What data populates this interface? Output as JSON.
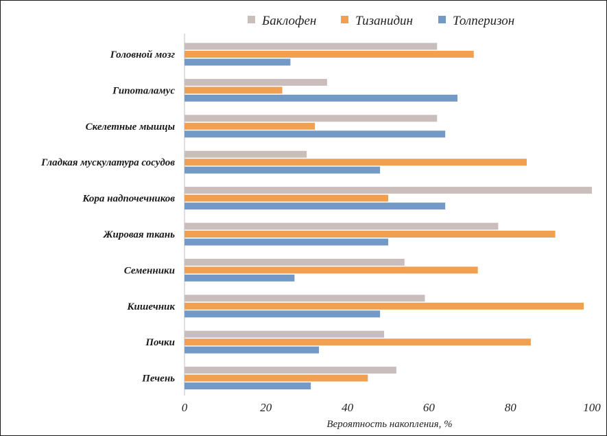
{
  "chart_data": {
    "type": "bar",
    "orientation": "horizontal",
    "categories": [
      "Головной мозг",
      "Гипоталамус",
      "Скелетные мышцы",
      "Гладкая мускулатура сосудов",
      "Кора надпочечников",
      "Жировая ткань",
      "Семенники",
      "Кишечник",
      "Почки",
      "Печень"
    ],
    "series": [
      {
        "name": "Баклофен",
        "color": "#c9bebc",
        "values": [
          62,
          35,
          62,
          30,
          100,
          77,
          54,
          59,
          49,
          52
        ]
      },
      {
        "name": "Тизанидин",
        "color": "#f0a050",
        "values": [
          71,
          24,
          32,
          84,
          50,
          91,
          72,
          98,
          85,
          45
        ]
      },
      {
        "name": "Толперизон",
        "color": "#7399c6",
        "values": [
          26,
          67,
          64,
          48,
          64,
          50,
          27,
          48,
          33,
          31
        ]
      }
    ],
    "xlabel": "Вероятность накопления, %",
    "xlim": [
      0,
      100
    ],
    "xticks": [
      "0",
      "20",
      "40",
      "60",
      "80",
      "100"
    ],
    "grid": false,
    "legend": "top"
  }
}
